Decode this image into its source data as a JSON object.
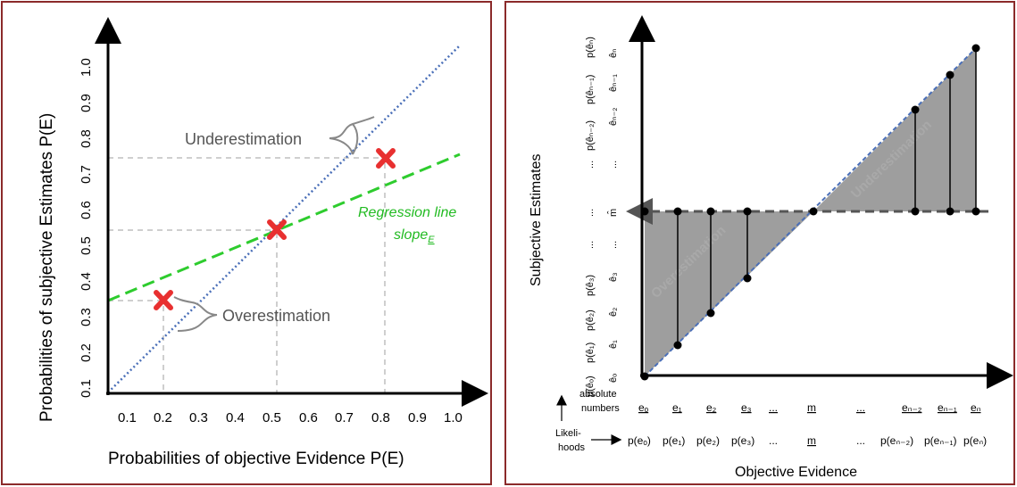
{
  "left": {
    "x_ticks": [
      "0.1",
      "0.2",
      "0.3",
      "0.4",
      "0.5",
      "0.6",
      "0.7",
      "0.8",
      "0.9",
      "1.0"
    ],
    "y_ticks": [
      "0.1",
      "0.2",
      "0.3",
      "0.4",
      "0.5",
      "0.6",
      "0.7",
      "0.8",
      "0.9",
      "1.0"
    ],
    "x_label": "Probabilities of objective Evidence P(E)",
    "y_label": "Probabilities of subjective Estimates P(E)",
    "callout_under": "Underestimation",
    "callout_over": "Overestimation",
    "regression_line": "Regression line",
    "slope_label": "slope",
    "slope_sub": "E"
  },
  "right": {
    "x_label": "Objective Evidence",
    "y_label": "Subjective Estimates",
    "abs_label_1": "absolute",
    "abs_label_2": "numbers",
    "like_label_1": "Likeli-",
    "like_label_2": "hoods",
    "abs_numbers": [
      "eₒ",
      "e₁",
      "e₂",
      "e₃",
      "...",
      "m",
      "...",
      "eₙ₋₂",
      "eₙ₋₁",
      "eₙ"
    ],
    "likelihoods": [
      "p(eₒ)",
      "p(e₁)",
      "p(e₂)",
      "p(e₃)",
      "...",
      "m",
      "...",
      "p(eₙ₋₂)",
      "p(eₙ₋₁)",
      "p(eₙ)"
    ],
    "y_estimates": [
      "êₒ",
      "ê₁",
      "ê₂",
      "ê₃",
      "...",
      "m̂",
      "...",
      "êₙ₋₂",
      "êₙ₋₁",
      "êₙ"
    ],
    "y_likelihoods": [
      "p(êₒ)",
      "p(ê₁)",
      "p(ê₂)",
      "p(ê₃)",
      "...",
      "...",
      "...",
      "p(êₙ₋₂)",
      "p(êₙ₋₁)",
      "p(êₙ)"
    ],
    "underestimation_label": "Underestimation",
    "overestimation_label": "Overestimation"
  }
}
